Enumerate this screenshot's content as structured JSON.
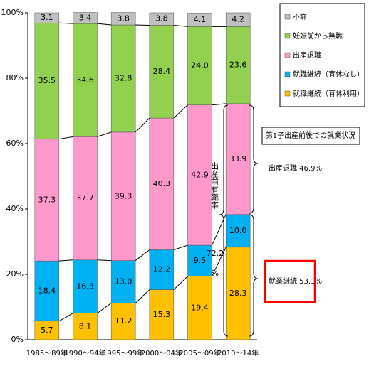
{
  "chart_data": {
    "type": "stacked_bar",
    "categories": [
      "1985～89年",
      "1990～94年",
      "1995～99年",
      "2000～04年",
      "2005～09年",
      "2010～14年"
    ],
    "series": [
      {
        "name": "就職継続（育休利用）",
        "color": "#ffc000",
        "values": [
          5.7,
          8.1,
          11.2,
          15.3,
          19.4,
          28.3
        ],
        "value_labels": [
          "5.7",
          "8.1",
          "11.2",
          "15.3",
          "19.4",
          "28.3"
        ]
      },
      {
        "name": "就職継続（育休なし）",
        "color": "#00b0f0",
        "values": [
          18.4,
          16.3,
          13.0,
          12.2,
          9.5,
          10.0
        ],
        "value_labels": [
          "18.4",
          "16.3",
          "13.0",
          "12.2",
          "9.5",
          "10.0"
        ]
      },
      {
        "name": "出産退職",
        "color": "#ff99cc",
        "values": [
          37.3,
          37.7,
          39.3,
          40.3,
          42.9,
          33.9
        ],
        "value_labels": [
          "37.3",
          "37.7",
          "39.3",
          "40.3",
          "42.9",
          "33.9"
        ]
      },
      {
        "name": "妊娠前から無職",
        "color": "#92d050",
        "values": [
          35.5,
          34.6,
          32.8,
          28.4,
          24.0,
          23.6
        ],
        "value_labels": [
          "35.5",
          "34.6",
          "32.8",
          "28.4",
          "24.0",
          "23.6"
        ]
      },
      {
        "name": "不詳",
        "color": "#c0c0c0",
        "values": [
          3.1,
          3.4,
          3.8,
          3.8,
          4.1,
          4.2
        ],
        "value_labels": [
          "3.1",
          "3.4",
          "3.8",
          "3.8",
          "4.1",
          "4.2"
        ]
      }
    ],
    "ylim": [
      0,
      100
    ],
    "yticks": [
      {
        "value": 0,
        "label": "0%"
      },
      {
        "value": 20,
        "label": "20%"
      },
      {
        "value": 40,
        "label": "40%"
      },
      {
        "value": 60,
        "label": "60%"
      },
      {
        "value": 80,
        "label": "80%"
      },
      {
        "value": 100,
        "label": "100%"
      }
    ],
    "annotations": {
      "box_title": "第1子出産前後での就業状況",
      "quit": "出産退職 46.9%",
      "continue": "就業継続 53.1%",
      "employed_rate_label": "出産前有職率",
      "employed_rate_value": "72.2",
      "employed_rate_unit": "%"
    }
  }
}
